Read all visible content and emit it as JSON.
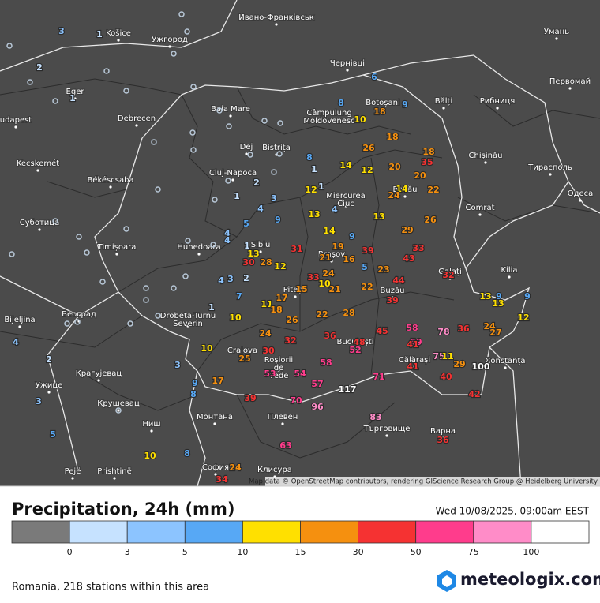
{
  "map": {
    "attribution": "Map data © OpenStreetMap contributors, rendering GIScience Research Group @ Heidelberg University",
    "places": [
      "Ивано-Франківськ",
      "Чернівці",
      "Умань",
      "Первомай",
      "Рибниця",
      "Bălți",
      "Chișinău",
      "Тирасполь",
      "Одеса",
      "Comrat",
      "Kilia",
      "Galați",
      "Constanța",
      "Košice",
      "Ужгород",
      "Eger",
      "udapest",
      "Debrecen",
      "Baia Mare",
      "Câmpulung Moldovenesc",
      "Botoșani",
      "Dej",
      "Bistrița",
      "Kecskemét",
      "Békéscsaba",
      "Cluj-Napoca",
      "Miercurea Ciuc",
      "Bacău",
      "Суботица",
      "Timișoara",
      "Hunedoara",
      "Sibiu",
      "Brașov",
      "Buzău",
      "Bijeljina",
      "Београд",
      "Drobeta-Turnu Severin",
      "Pitești",
      "Craiova",
      "București",
      "Călărași",
      "Roșiorii de Vede",
      "Ужице",
      "Крагујевац",
      "Крушевац",
      "Ниш",
      "Монтана",
      "Плевен",
      "Търговище",
      "Варна",
      "Pejë",
      "Prishtinë",
      "София",
      "Клисура"
    ],
    "stations": [
      3,
      1,
      0,
      2,
      0,
      0,
      1,
      0,
      0,
      0,
      0,
      0,
      0,
      0,
      0,
      0,
      0,
      0,
      0,
      8,
      1,
      1,
      12,
      13,
      4,
      14,
      9,
      14,
      12,
      26,
      18,
      20,
      18,
      35,
      20,
      22,
      14,
      24,
      13,
      26,
      29,
      33,
      43,
      39,
      19,
      21,
      16,
      23,
      5,
      44,
      39,
      22,
      21,
      24,
      10,
      33,
      15,
      31,
      12,
      28,
      30,
      13,
      1,
      2,
      7,
      4,
      3,
      1,
      4,
      4,
      5,
      4,
      9,
      3,
      1,
      0,
      0,
      2,
      17,
      11,
      18,
      26,
      22,
      28,
      36,
      32,
      30,
      25,
      10,
      10,
      24,
      48,
      52,
      45,
      58,
      59,
      78,
      36,
      24,
      27,
      41,
      13,
      13,
      9,
      9,
      12,
      32,
      75,
      11,
      29,
      100,
      40,
      42,
      41,
      71,
      117,
      58,
      54,
      57,
      96,
      70,
      53,
      39,
      17,
      9,
      8,
      3,
      2,
      4,
      3,
      5,
      10,
      8,
      24,
      34,
      63,
      83,
      36,
      6,
      8,
      10,
      18,
      9,
      0,
      0,
      0,
      0,
      0,
      0,
      0,
      0,
      0,
      0,
      0,
      0,
      0,
      0,
      0,
      0,
      0,
      0,
      0,
      0,
      0,
      0
    ]
  },
  "legend": {
    "title": "Precipitation, 24h (mm)",
    "date": "Wed 10/08/2025, 09:00am EEST",
    "colors": [
      "#7a7a7a",
      "#c6e2ff",
      "#8cc4ff",
      "#57a8f5",
      "#ffe000",
      "#f5900f",
      "#f53232",
      "#ff3c8c",
      "#ff8cc8",
      "#ffffff"
    ],
    "breaks": [
      0,
      3,
      5,
      10,
      15,
      30,
      50,
      75,
      100
    ]
  },
  "footer": {
    "summary": "Romania, 218 stations within this area",
    "brand": "meteologix.com"
  }
}
